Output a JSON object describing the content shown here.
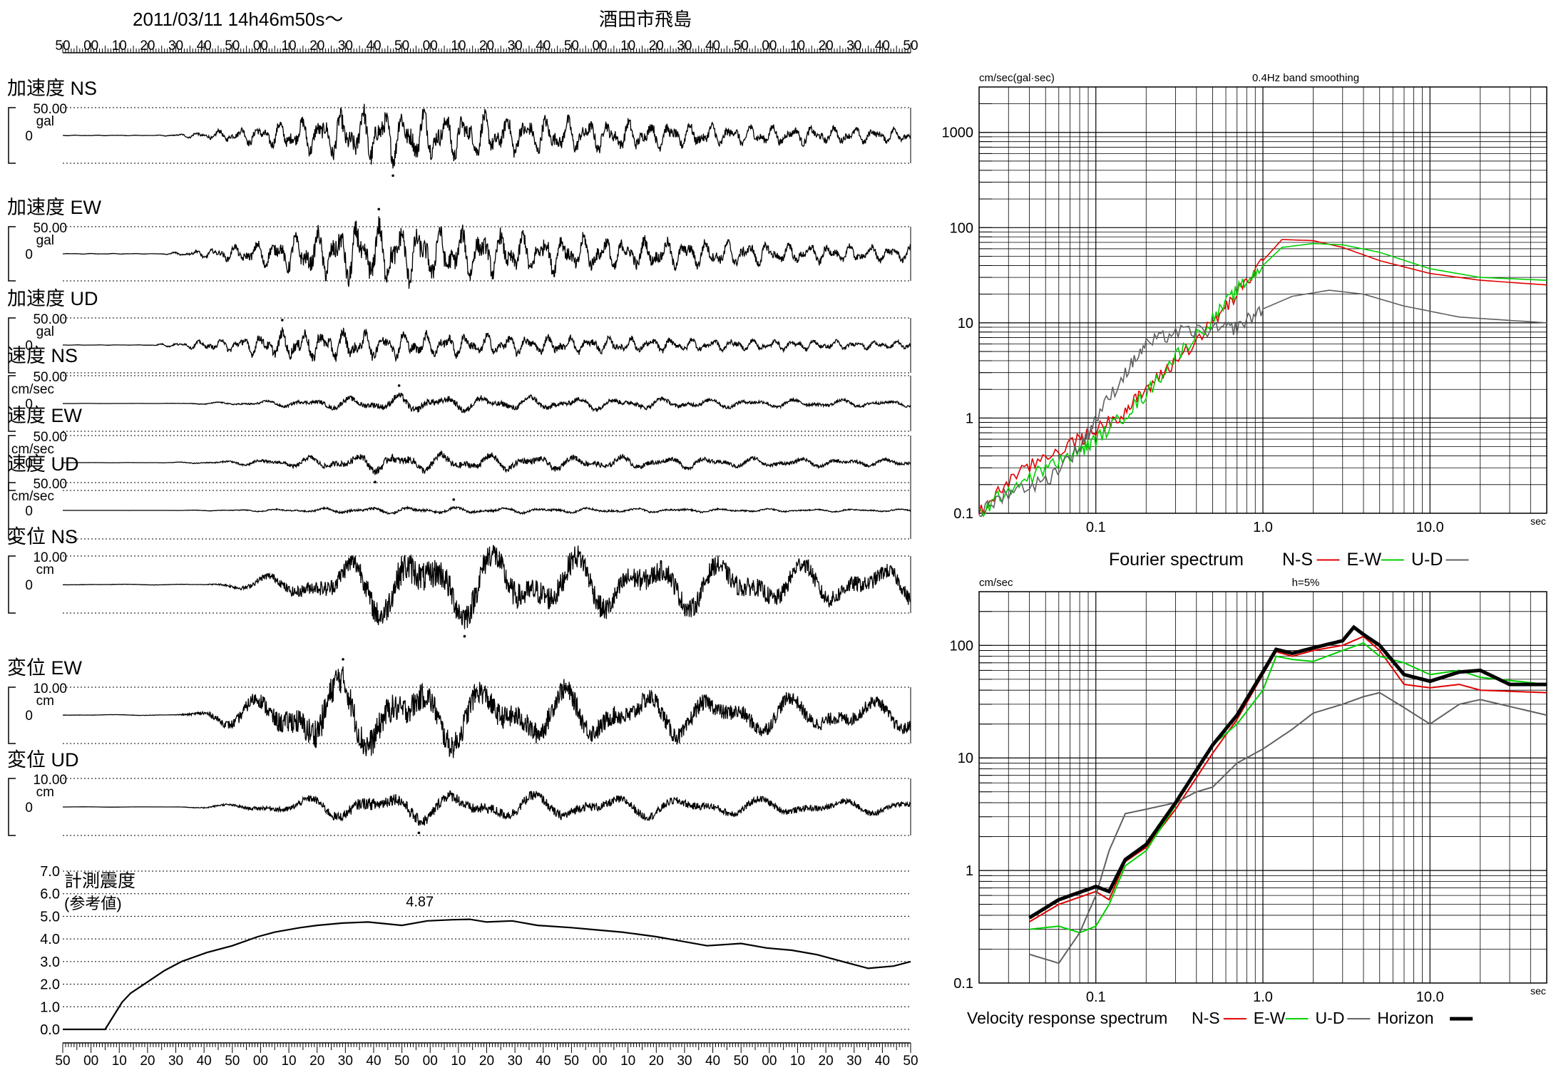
{
  "header": {
    "datetime": "2011/03/11  14h46m50s～",
    "station": "酒田市飛島"
  },
  "time_axis_labels": [
    "50",
    "00",
    "10",
    "20",
    "30",
    "40",
    "50",
    "00",
    "10",
    "20",
    "30",
    "40",
    "50",
    "00",
    "10",
    "20",
    "30",
    "40",
    "50",
    "00",
    "10",
    "20",
    "30",
    "40",
    "50",
    "00",
    "10",
    "20",
    "30",
    "40",
    "50"
  ],
  "chart_data": [
    {
      "type": "line",
      "id": "waveforms",
      "x_ticks": [
        "50",
        "00",
        "10",
        "20",
        "30",
        "40",
        "50",
        "00",
        "10",
        "20",
        "30",
        "40",
        "50",
        "00",
        "10",
        "20",
        "30",
        "40",
        "50",
        "00",
        "10",
        "20",
        "30",
        "40",
        "50",
        "00",
        "10",
        "20",
        "30",
        "40",
        "50"
      ],
      "traces": [
        {
          "name": "加速度 NS",
          "scale_label": "50.00",
          "unit": "gal",
          "zero_label": "0",
          "peak_ratio": 0.95,
          "onset": 0.1,
          "peak_at": 0.36,
          "decay": 0.45
        },
        {
          "name": "加速度 EW",
          "scale_label": "50.00",
          "unit": "gal",
          "zero_label": "0",
          "peak_ratio": 1.1,
          "onset": 0.1,
          "peak_at": 0.35,
          "decay": 0.45
        },
        {
          "name": "加速度 UD",
          "scale_label": "50.00",
          "unit": "gal",
          "zero_label": "0",
          "peak_ratio": 0.55,
          "onset": 0.08,
          "peak_at": 0.28,
          "decay": 0.5
        },
        {
          "name": "速度 NS",
          "scale_label": "50.00",
          "unit": "cm/sec",
          "zero_label": "0",
          "peak_ratio": 0.3,
          "onset": 0.1,
          "peak_at": 0.4,
          "decay": 0.6
        },
        {
          "name": "速度 EW",
          "scale_label": "50.00",
          "unit": "cm/sec",
          "zero_label": "0",
          "peak_ratio": 0.35,
          "onset": 0.1,
          "peak_at": 0.38,
          "decay": 0.6
        },
        {
          "name": "速度 UD",
          "scale_label": "50.00",
          "unit": "cm/sec",
          "zero_label": "0",
          "peak_ratio": 0.12,
          "onset": 0.1,
          "peak_at": 0.38,
          "decay": 0.6
        },
        {
          "name": "変位 NS",
          "scale_label": "10.00",
          "unit": "cm",
          "zero_label": "0",
          "peak_ratio": 1.35,
          "onset": 0.15,
          "peak_at": 0.4,
          "decay": 0.8
        },
        {
          "name": "変位 EW",
          "scale_label": "10.00",
          "unit": "cm",
          "zero_label": "0",
          "peak_ratio": 1.4,
          "onset": 0.12,
          "peak_at": 0.3,
          "decay": 0.7
        },
        {
          "name": "変位 UD",
          "scale_label": "10.00",
          "unit": "cm",
          "zero_label": "0",
          "peak_ratio": 0.55,
          "onset": 0.12,
          "peak_at": 0.37,
          "decay": 0.7
        }
      ]
    },
    {
      "type": "line",
      "id": "intensity",
      "title": "計測震度",
      "subtitle": "(参考値)",
      "y_ticks": [
        "0.0",
        "1.0",
        "2.0",
        "3.0",
        "4.0",
        "5.0",
        "6.0",
        "7.0"
      ],
      "ylim": [
        0,
        7
      ],
      "xlim": [
        0,
        1
      ],
      "peak_label": "4.87",
      "peak_x": 0.48,
      "points": [
        [
          0,
          0
        ],
        [
          0.02,
          0
        ],
        [
          0.05,
          0
        ],
        [
          0.06,
          0.6
        ],
        [
          0.07,
          1.2
        ],
        [
          0.08,
          1.6
        ],
        [
          0.1,
          2.1
        ],
        [
          0.12,
          2.6
        ],
        [
          0.14,
          3.0
        ],
        [
          0.17,
          3.4
        ],
        [
          0.2,
          3.7
        ],
        [
          0.23,
          4.1
        ],
        [
          0.25,
          4.3
        ],
        [
          0.28,
          4.5
        ],
        [
          0.3,
          4.6
        ],
        [
          0.33,
          4.7
        ],
        [
          0.36,
          4.75
        ],
        [
          0.4,
          4.6
        ],
        [
          0.43,
          4.8
        ],
        [
          0.46,
          4.85
        ],
        [
          0.48,
          4.87
        ],
        [
          0.5,
          4.75
        ],
        [
          0.53,
          4.8
        ],
        [
          0.56,
          4.6
        ],
        [
          0.6,
          4.5
        ],
        [
          0.63,
          4.4
        ],
        [
          0.66,
          4.3
        ],
        [
          0.7,
          4.1
        ],
        [
          0.73,
          3.9
        ],
        [
          0.76,
          3.7
        ],
        [
          0.8,
          3.8
        ],
        [
          0.83,
          3.6
        ],
        [
          0.86,
          3.5
        ],
        [
          0.89,
          3.3
        ],
        [
          0.92,
          3.0
        ],
        [
          0.95,
          2.7
        ],
        [
          0.98,
          2.8
        ],
        [
          1,
          3.0
        ]
      ]
    },
    {
      "type": "line",
      "id": "fourier",
      "title": "0.4Hz band smoothing",
      "ylabel": "cm/sec(gal·sec)",
      "xlabel_unit": "sec",
      "x_scale": "log",
      "y_scale": "log",
      "xlim": [
        0.02,
        50
      ],
      "ylim": [
        0.1,
        3000
      ],
      "x_tick_labels": [
        {
          "v": 0.1,
          "t": "0.1"
        },
        {
          "v": 1,
          "t": "1.0"
        },
        {
          "v": 10,
          "t": "10.0"
        }
      ],
      "y_tick_labels": [
        {
          "v": 0.1,
          "t": "0.1"
        },
        {
          "v": 1,
          "t": "1"
        },
        {
          "v": 10,
          "t": "10"
        },
        {
          "v": 100,
          "t": "100"
        },
        {
          "v": 1000,
          "t": "1000"
        }
      ],
      "legend_label": "Fourier spectrum",
      "series": [
        {
          "name": "N-S",
          "color": "#e00000",
          "points": [
            [
              0.02,
              0.1
            ],
            [
              0.03,
              0.22
            ],
            [
              0.05,
              0.4
            ],
            [
              0.08,
              0.6
            ],
            [
              0.1,
              0.75
            ],
            [
              0.15,
              1.2
            ],
            [
              0.2,
              2.0
            ],
            [
              0.3,
              4.0
            ],
            [
              0.5,
              10
            ],
            [
              0.7,
              20
            ],
            [
              1.0,
              45
            ],
            [
              1.3,
              75
            ],
            [
              2.0,
              73
            ],
            [
              3.0,
              62
            ],
            [
              5.0,
              45
            ],
            [
              10,
              33
            ],
            [
              20,
              28
            ],
            [
              50,
              25
            ]
          ]
        },
        {
          "name": "E-W",
          "color": "#00d000",
          "points": [
            [
              0.02,
              0.1
            ],
            [
              0.03,
              0.18
            ],
            [
              0.05,
              0.3
            ],
            [
              0.08,
              0.45
            ],
            [
              0.1,
              0.6
            ],
            [
              0.15,
              1.1
            ],
            [
              0.2,
              1.8
            ],
            [
              0.3,
              4.5
            ],
            [
              0.5,
              11
            ],
            [
              0.7,
              22
            ],
            [
              1.0,
              40
            ],
            [
              1.3,
              62
            ],
            [
              2.0,
              68
            ],
            [
              3.0,
              66
            ],
            [
              5.0,
              55
            ],
            [
              10,
              37
            ],
            [
              20,
              30
            ],
            [
              50,
              28
            ]
          ]
        },
        {
          "name": "U-D",
          "color": "#606060",
          "points": [
            [
              0.02,
              0.1
            ],
            [
              0.03,
              0.17
            ],
            [
              0.05,
              0.22
            ],
            [
              0.08,
              0.5
            ],
            [
              0.1,
              1.0
            ],
            [
              0.15,
              3.0
            ],
            [
              0.2,
              6.0
            ],
            [
              0.3,
              8.0
            ],
            [
              0.5,
              8.5
            ],
            [
              0.7,
              9.0
            ],
            [
              1.0,
              14
            ],
            [
              1.5,
              19
            ],
            [
              2.5,
              22
            ],
            [
              4.0,
              20
            ],
            [
              7,
              15
            ],
            [
              15,
              11.5
            ],
            [
              50,
              10
            ]
          ]
        }
      ]
    },
    {
      "type": "line",
      "id": "velocity_response",
      "title": "h=5%",
      "ylabel": "cm/sec",
      "xlabel_unit": "sec",
      "x_scale": "log",
      "y_scale": "log",
      "xlim": [
        0.02,
        50
      ],
      "ylim": [
        0.1,
        300
      ],
      "x_tick_labels": [
        {
          "v": 0.1,
          "t": "0.1"
        },
        {
          "v": 1,
          "t": "1.0"
        },
        {
          "v": 10,
          "t": "10.0"
        }
      ],
      "y_tick_labels": [
        {
          "v": 0.1,
          "t": "0.1"
        },
        {
          "v": 1,
          "t": "1"
        },
        {
          "v": 10,
          "t": "10"
        },
        {
          "v": 100,
          "t": "100"
        }
      ],
      "legend_label": "Velocity response spectrum",
      "series": [
        {
          "name": "N-S",
          "color": "#e00000",
          "width": 2,
          "points": [
            [
              0.04,
              0.35
            ],
            [
              0.06,
              0.5
            ],
            [
              0.1,
              0.65
            ],
            [
              0.12,
              0.55
            ],
            [
              0.15,
              1.2
            ],
            [
              0.2,
              1.6
            ],
            [
              0.3,
              3.5
            ],
            [
              0.5,
              11
            ],
            [
              0.7,
              22
            ],
            [
              1.0,
              55
            ],
            [
              1.2,
              88
            ],
            [
              1.5,
              80
            ],
            [
              2.0,
              90
            ],
            [
              3.0,
              100
            ],
            [
              4.0,
              120
            ],
            [
              5.0,
              90
            ],
            [
              7.0,
              45
            ],
            [
              10,
              42
            ],
            [
              15,
              45
            ],
            [
              20,
              40
            ],
            [
              50,
              38
            ]
          ]
        },
        {
          "name": "E-W",
          "color": "#00d000",
          "width": 2,
          "points": [
            [
              0.04,
              0.3
            ],
            [
              0.06,
              0.32
            ],
            [
              0.08,
              0.28
            ],
            [
              0.1,
              0.32
            ],
            [
              0.12,
              0.5
            ],
            [
              0.15,
              1.1
            ],
            [
              0.2,
              1.5
            ],
            [
              0.3,
              3.8
            ],
            [
              0.5,
              13
            ],
            [
              0.7,
              20
            ],
            [
              1.0,
              40
            ],
            [
              1.2,
              80
            ],
            [
              1.5,
              75
            ],
            [
              2.0,
              72
            ],
            [
              3.0,
              90
            ],
            [
              4.0,
              105
            ],
            [
              5.0,
              80
            ],
            [
              7.0,
              70
            ],
            [
              10,
              55
            ],
            [
              15,
              60
            ],
            [
              20,
              52
            ],
            [
              50,
              45
            ]
          ]
        },
        {
          "name": "U-D",
          "color": "#606060",
          "width": 2,
          "points": [
            [
              0.04,
              0.18
            ],
            [
              0.06,
              0.15
            ],
            [
              0.08,
              0.28
            ],
            [
              0.1,
              0.6
            ],
            [
              0.12,
              1.5
            ],
            [
              0.15,
              3.2
            ],
            [
              0.2,
              3.5
            ],
            [
              0.3,
              4.0
            ],
            [
              0.4,
              5.0
            ],
            [
              0.5,
              5.5
            ],
            [
              0.7,
              9.0
            ],
            [
              1.0,
              12
            ],
            [
              1.5,
              18
            ],
            [
              2.0,
              25
            ],
            [
              3.0,
              30
            ],
            [
              4.0,
              35
            ],
            [
              5.0,
              38
            ],
            [
              7.0,
              28
            ],
            [
              10,
              20
            ],
            [
              15,
              30
            ],
            [
              20,
              33
            ],
            [
              50,
              24
            ]
          ]
        },
        {
          "name": "Horizon",
          "color": "#000000",
          "width": 5,
          "points": [
            [
              0.04,
              0.38
            ],
            [
              0.06,
              0.55
            ],
            [
              0.1,
              0.72
            ],
            [
              0.12,
              0.65
            ],
            [
              0.15,
              1.25
            ],
            [
              0.2,
              1.7
            ],
            [
              0.3,
              4.0
            ],
            [
              0.5,
              13
            ],
            [
              0.7,
              24
            ],
            [
              1.0,
              58
            ],
            [
              1.2,
              92
            ],
            [
              1.5,
              85
            ],
            [
              2.0,
              95
            ],
            [
              3.0,
              110
            ],
            [
              3.5,
              145
            ],
            [
              4.0,
              125
            ],
            [
              5.0,
              100
            ],
            [
              7.0,
              55
            ],
            [
              10,
              48
            ],
            [
              15,
              58
            ],
            [
              20,
              60
            ],
            [
              30,
              45
            ],
            [
              50,
              45
            ]
          ]
        }
      ]
    }
  ]
}
